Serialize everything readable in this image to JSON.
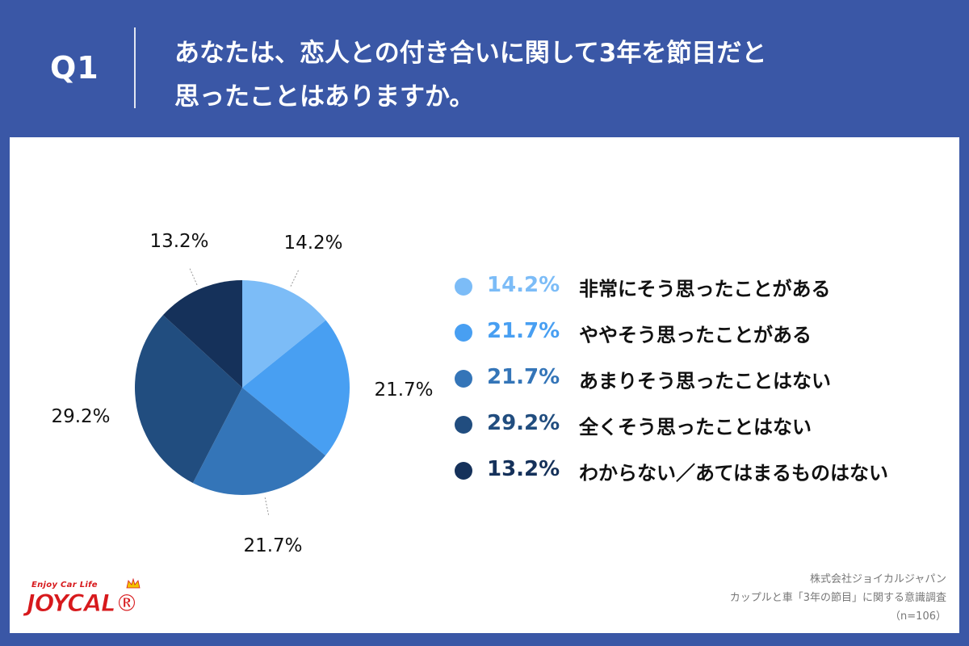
{
  "header": {
    "q_label": "Q1",
    "question_line1": "あなたは、恋人との付き合いに関して3年を節目だと",
    "question_line2": "思ったことはありますか。"
  },
  "colors": {
    "header_bg": "#3a57a6",
    "panel_bg": "#ffffff",
    "slices": [
      "#7cbcf7",
      "#489ff2",
      "#3475b8",
      "#214d7f",
      "#15315a"
    ]
  },
  "chart_data": {
    "type": "pie",
    "categories": [
      "非常にそう思ったことがある",
      "ややそう思ったことがある",
      "あまりそう思ったことはない",
      "全くそう思ったことはない",
      "わからない／あてはまるものはない"
    ],
    "values": [
      14.2,
      21.7,
      21.7,
      29.2,
      13.2
    ],
    "value_labels": [
      "14.2%",
      "21.7%",
      "21.7%",
      "29.2%",
      "13.2%"
    ],
    "start": "12 o'clock",
    "direction": "clockwise",
    "legend_position": "right"
  },
  "source": {
    "company": "株式会社ジョイカルジャパン",
    "survey": "カップルと車「3年の節目」に関する意識調査",
    "sample": "（n=106）"
  },
  "logo": {
    "tagline": "Enjoy Car Life",
    "brand": "JOYCAL®"
  }
}
